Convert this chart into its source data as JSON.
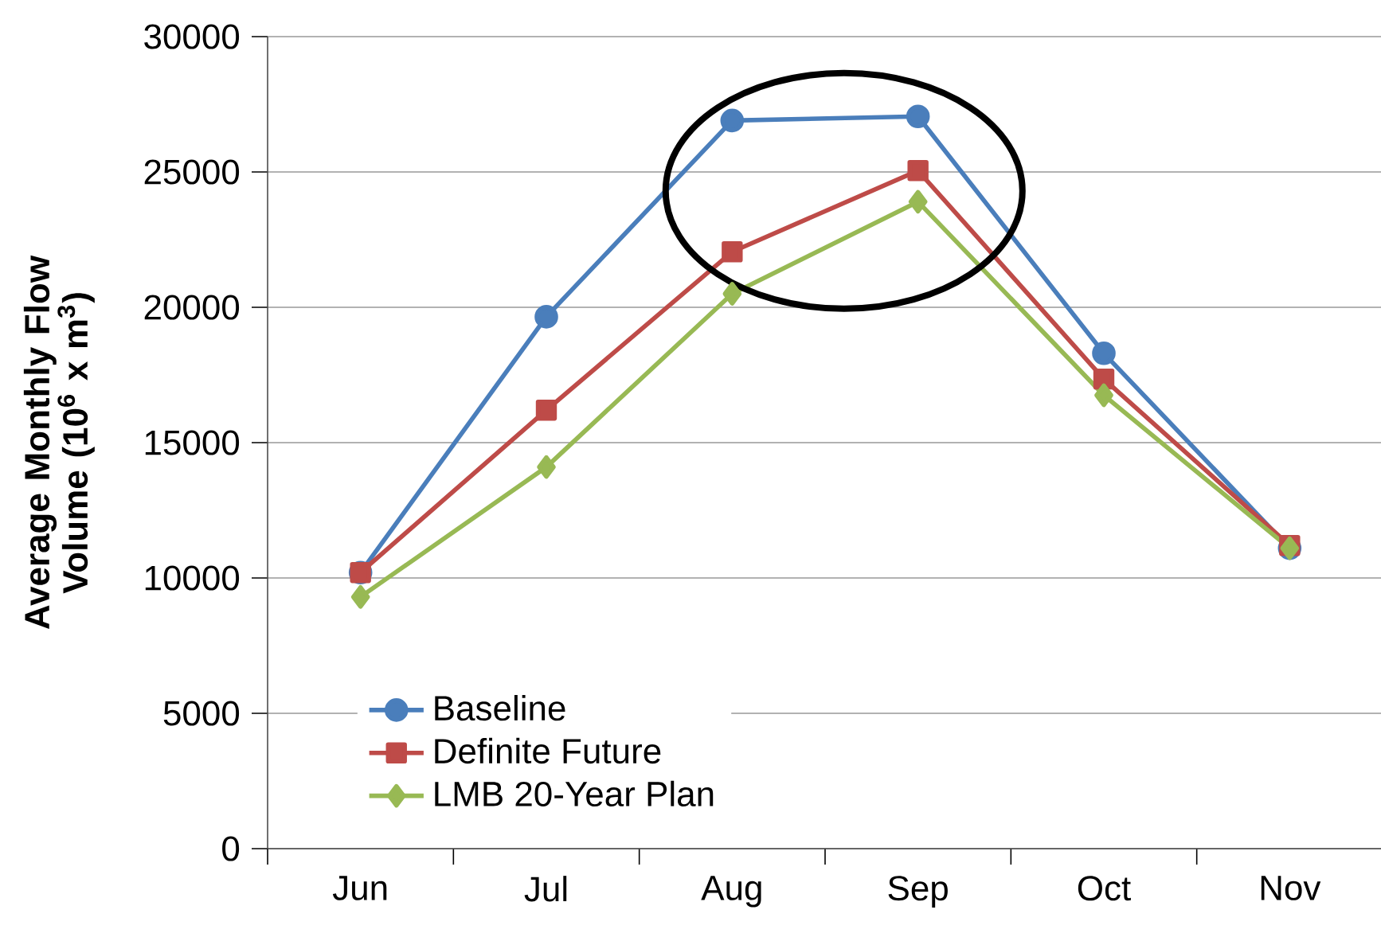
{
  "chart_data": {
    "type": "line",
    "ylabel": "Average Monthly Flow Volume (10$^{6}$ x m$^{3}$)",
    "categories": [
      "Jun",
      "Jul",
      "Aug",
      "Sep",
      "Oct",
      "Nov"
    ],
    "series": [
      {
        "name": "Baseline",
        "color": "#4a7ebb",
        "marker": "circle",
        "values": [
          10200,
          19650,
          26900,
          27050,
          18300,
          11100
        ]
      },
      {
        "name": "Definite Future",
        "color": "#be4b48",
        "marker": "square",
        "values": [
          10200,
          16200,
          22050,
          25050,
          17350,
          11200
        ]
      },
      {
        "name": "LMB 20-Year Plan",
        "color": "#98b954",
        "marker": "diamond",
        "values": [
          9300,
          14100,
          20500,
          23900,
          16750,
          11100
        ]
      }
    ],
    "ylim": [
      0,
      30000
    ],
    "yticks": [
      0,
      5000,
      10000,
      15000,
      20000,
      25000,
      30000
    ],
    "grid": "y",
    "legend": "bottom left",
    "line_style": "solid"
  }
}
